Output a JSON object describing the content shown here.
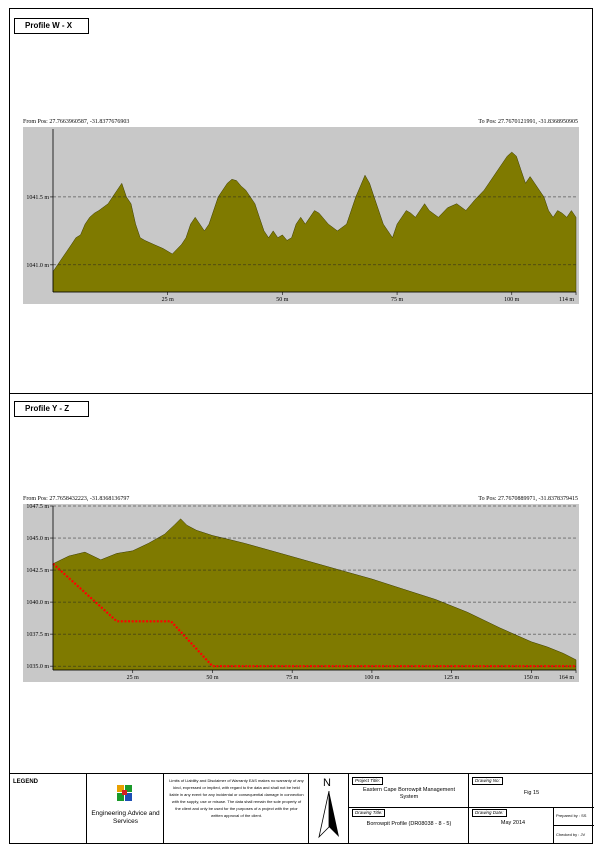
{
  "profiles": [
    {
      "title": "Profile W - X",
      "from_pos": "From Pos: 27.7663960587, -31.8377676903",
      "to_pos": "To Pos: 27.7670121991, -31.8368950905"
    },
    {
      "title": "Profile Y - Z",
      "from_pos": "From Pos: 27.7658432223, -31.8368136797",
      "to_pos": "To Pos: 27.7670889971, -31.8378379415"
    }
  ],
  "chart_data": [
    {
      "type": "area",
      "x_unit": "m",
      "xlim": [
        0,
        114
      ],
      "ylim": [
        1040.8,
        1042.0
      ],
      "x_ticks": [
        25,
        50,
        75,
        100,
        114
      ],
      "x_tick_labels": [
        "25 m",
        "50 m",
        "75 m",
        "100 m",
        "114 m"
      ],
      "y_ticks": [
        1041.0,
        1041.5
      ],
      "y_tick_labels": [
        "1041.0 m",
        "1041.5 m"
      ],
      "grid": "dashed horizontal",
      "fill_color": "#7f7a00",
      "series": [
        {
          "x": [
            0,
            1,
            2,
            3,
            4,
            5,
            6,
            7,
            8,
            9,
            10,
            12,
            13,
            14,
            15,
            16,
            17,
            18,
            19,
            20,
            22,
            24,
            26,
            28,
            29,
            30,
            31,
            32,
            33,
            34,
            35,
            36,
            37,
            38,
            39,
            40,
            41,
            42,
            43,
            44,
            45,
            46,
            47,
            48,
            49,
            50,
            51,
            52,
            53,
            54,
            55,
            56,
            57,
            58,
            60,
            62,
            64,
            65,
            66,
            67,
            68,
            69,
            70,
            71,
            72,
            73,
            74,
            75,
            76,
            77,
            78,
            79,
            80,
            81,
            82,
            84,
            86,
            88,
            90,
            92,
            94,
            95,
            96,
            97,
            98,
            99,
            100,
            101,
            102,
            103,
            104,
            105,
            106,
            107,
            108,
            109,
            110,
            111,
            112,
            113,
            114
          ],
          "y": [
            1040.95,
            1041.0,
            1041.05,
            1041.1,
            1041.15,
            1041.2,
            1041.22,
            1041.3,
            1041.35,
            1041.38,
            1041.4,
            1041.45,
            1041.5,
            1041.55,
            1041.6,
            1041.5,
            1041.45,
            1041.3,
            1041.2,
            1041.18,
            1041.15,
            1041.12,
            1041.08,
            1041.15,
            1041.2,
            1041.3,
            1041.35,
            1041.3,
            1041.25,
            1041.3,
            1041.4,
            1041.5,
            1041.55,
            1041.6,
            1041.63,
            1041.62,
            1041.58,
            1041.55,
            1041.5,
            1041.45,
            1041.35,
            1041.25,
            1041.2,
            1041.25,
            1041.2,
            1041.22,
            1041.18,
            1041.2,
            1041.3,
            1041.35,
            1041.3,
            1041.35,
            1041.4,
            1041.38,
            1041.3,
            1041.25,
            1041.3,
            1041.4,
            1041.5,
            1041.58,
            1041.66,
            1041.6,
            1041.5,
            1041.4,
            1041.3,
            1041.25,
            1041.2,
            1041.3,
            1041.35,
            1041.4,
            1041.38,
            1041.35,
            1041.4,
            1041.45,
            1041.4,
            1041.35,
            1041.42,
            1041.45,
            1041.4,
            1041.48,
            1041.55,
            1041.6,
            1041.65,
            1041.7,
            1041.75,
            1041.8,
            1041.83,
            1041.8,
            1041.7,
            1041.6,
            1041.65,
            1041.6,
            1041.55,
            1041.5,
            1041.4,
            1041.35,
            1041.4,
            1041.38,
            1041.35,
            1041.4,
            1041.35
          ]
        }
      ]
    },
    {
      "type": "area",
      "x_unit": "m",
      "xlim": [
        0,
        164
      ],
      "ylim": [
        1034.7,
        1047.5
      ],
      "x_ticks": [
        25,
        50,
        75,
        100,
        125,
        150,
        164
      ],
      "x_tick_labels": [
        "25 m",
        "50 m",
        "75 m",
        "100 m",
        "125 m",
        "150 m",
        "164 m"
      ],
      "y_ticks": [
        1035.0,
        1037.5,
        1040.0,
        1042.5,
        1045.0,
        1047.5
      ],
      "y_tick_labels": [
        "1035.0 m",
        "1037.5 m",
        "1040.0 m",
        "1042.5 m",
        "1045.0 m",
        "1047.5 m"
      ],
      "grid": "dashed horizontal",
      "fill_color": "#7f7a00",
      "line_color": "#ff0000",
      "series": [
        {
          "x": [
            0,
            5,
            10,
            15,
            20,
            25,
            30,
            35,
            38,
            40,
            42,
            45,
            50,
            55,
            60,
            70,
            80,
            90,
            100,
            110,
            120,
            130,
            140,
            150,
            155,
            160,
            164
          ],
          "y": [
            1043.0,
            1043.6,
            1043.9,
            1043.3,
            1043.8,
            1044.0,
            1044.6,
            1045.3,
            1046.0,
            1046.5,
            1046.0,
            1045.6,
            1045.2,
            1044.9,
            1044.6,
            1043.9,
            1043.2,
            1042.5,
            1041.8,
            1041.0,
            1040.2,
            1039.2,
            1038.0,
            1036.9,
            1036.5,
            1036.0,
            1035.5
          ]
        },
        {
          "x": [
            0,
            20,
            37,
            50,
            164
          ],
          "y": [
            1043.0,
            1038.5,
            1038.5,
            1035.0,
            1035.0
          ]
        }
      ]
    }
  ],
  "legend": {
    "heading": "LEGEND",
    "company": "Engineering Advice and Services",
    "disclaimer": "Limits of Liability and Disclaimer of Warranty EAS makes no warranty of any kind, expressed or implied, with regard to the data and shall not be held liable in any event for any incidental or consequential damage in connection with the supply, use or misuse. The data shall remain the sole property of the client and only be used for the purposes of a project with the prior written approval of the client.",
    "north_label": "N",
    "project_title_label": "Project Title:",
    "project_title": "Eastern Cape Borrowpit Management System",
    "drawing_title_label": "Drawing Title:",
    "drawing_title": "Borrowpit Profile (DR08038 - 8 - 5)",
    "drawing_no_label": "Drawing No:",
    "drawing_no": "Fig 15",
    "drawing_date_label": "Drawing Date:",
    "drawing_date": "May 2014",
    "prepared_by": "Prepared by : SS",
    "checked_by": "Checked by : JV"
  }
}
